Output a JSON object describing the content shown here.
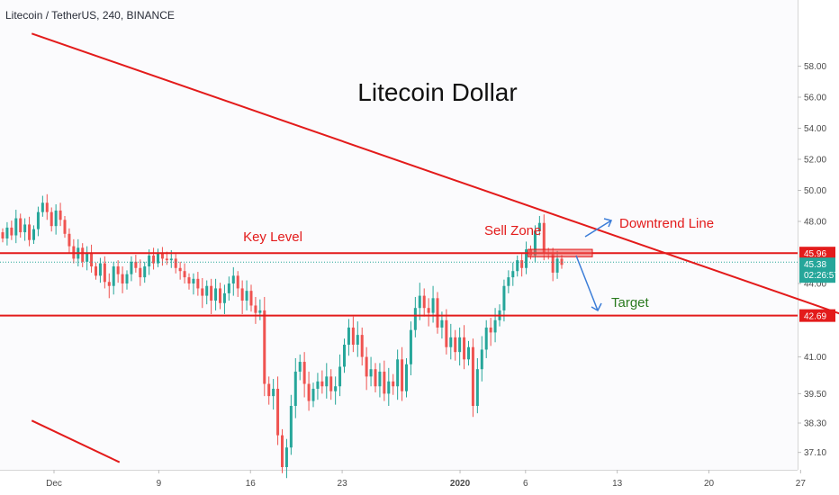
{
  "chart_data": {
    "type": "candlestick",
    "symbol": "Litecoin / TetherUS, 240, BINANCE",
    "title": "Litecoin Dollar",
    "y_ticks": [
      37.1,
      38.3,
      39.5,
      41.0,
      42.69,
      44.0,
      45.38,
      45.96,
      48.0,
      50.0,
      52.0,
      54.0,
      56.0,
      58.0
    ],
    "y_tick_labels": [
      "37.10",
      "38.30",
      "39.50",
      "41.00",
      "42.69",
      "44.00",
      "45.38",
      "45.96",
      "48.00",
      "50.00",
      "52.00",
      "54.00",
      "56.00",
      "58.00"
    ],
    "x_ticks": [
      "Dec",
      "9",
      "16",
      "23",
      "2020",
      "6",
      "13",
      "20",
      "27"
    ],
    "x_tick_days": [
      0,
      8,
      15,
      22,
      31,
      36,
      43,
      50,
      57
    ],
    "last_price": "45.38",
    "countdown": "02:26:57",
    "key_level": {
      "value": 45.96,
      "label": "Key Level"
    },
    "support_level": {
      "value": 42.69
    },
    "sell_zone": {
      "label": "Sell Zone",
      "from_day": 36.2,
      "to_day": 41.1,
      "low": 45.72,
      "high": 46.2
    },
    "downtrend_line": {
      "label": "Downtrend Line",
      "from": [
        -1.7,
        60.1
      ],
      "to": [
        60.1,
        42.75
      ]
    },
    "lower_channel_line": {
      "from": [
        -1.7,
        38.4
      ],
      "to": [
        5.0,
        36.7
      ]
    },
    "target": {
      "label": "Target"
    },
    "annotations": [
      "Key Level",
      "Sell Zone",
      "Downtrend Line",
      "Target"
    ],
    "colors": {
      "up": "#26a69a",
      "down": "#ef5350",
      "lines": "#e31b1b",
      "arrow": "#3b7dd8",
      "target_text": "#2a7a1f",
      "badge_green": "#26a69a",
      "badge_red": "#e31b1b"
    },
    "series_close": [
      46.9,
      47.6,
      47.1,
      48.2,
      47.3,
      47.8,
      46.8,
      47.5,
      48.6,
      49.2,
      48.6,
      47.7,
      48.7,
      48.1,
      47.2,
      46.4,
      45.6,
      46.3,
      45.4,
      46.0,
      45.1,
      44.5,
      45.3,
      44.1,
      43.9,
      45.1,
      44.6,
      44.0,
      44.6,
      45.4,
      45.0,
      44.4,
      45.1,
      45.8,
      45.3,
      46.0,
      45.6,
      45.5,
      45.6,
      45.0,
      44.8,
      44.4,
      44.0,
      44.3,
      43.8,
      43.5,
      43.9,
      43.3,
      43.8,
      43.2,
      43.6,
      44.0,
      44.5,
      43.8,
      43.3,
      43.7,
      43.1,
      42.8,
      42.9,
      39.9,
      39.4,
      39.7,
      37.8,
      36.5,
      37.3,
      39.0,
      40.4,
      40.8,
      39.9,
      39.2,
      39.7,
      40.0,
      39.8,
      40.2,
      39.6,
      39.8,
      40.6,
      41.5,
      42.2,
      41.5,
      41.9,
      41.0,
      40.2,
      40.5,
      39.8,
      40.4,
      39.5,
      40.0,
      39.8,
      40.9,
      39.6,
      40.7,
      42.1,
      43.0,
      43.5,
      43.0,
      42.8,
      43.4,
      42.2,
      42.5,
      41.4,
      41.8,
      41.2,
      41.8,
      40.9,
      41.4,
      39.0,
      40.5,
      41.3,
      42.2,
      42.0,
      42.5,
      42.9,
      43.9,
      44.4,
      44.8,
      45.5,
      45.0,
      46.2,
      45.8,
      47.4,
      47.9,
      46.0,
      45.9,
      44.7,
      45.6,
      45.2
    ]
  }
}
